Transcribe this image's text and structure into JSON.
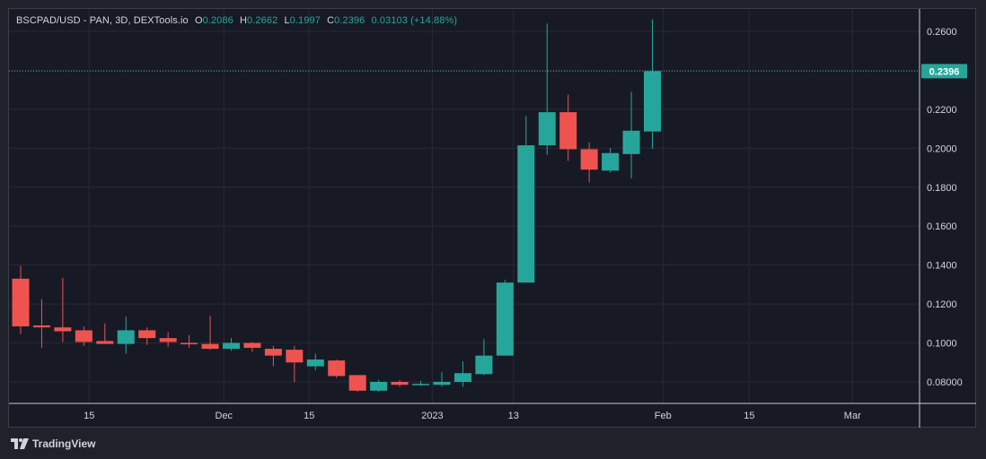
{
  "legend": {
    "symbol": "BSCPAD/USD - PAN, 3D, DEXTools.io",
    "open_label": "O",
    "open": "0.2086",
    "high_label": "H",
    "high": "0.2662",
    "low_label": "L",
    "low": "0.1997",
    "close_label": "C",
    "close": "0.2396",
    "change": "0.03103 (+14.88%)"
  },
  "branding": {
    "name": "TradingView"
  },
  "colors": {
    "up": "#26a69a",
    "down": "#ef5350",
    "background": "#171a25",
    "grid": "#262a36",
    "text": "#d1d4dc"
  },
  "chart_data": {
    "type": "candlestick",
    "interval": "3D",
    "ylim": [
      0.073,
      0.27
    ],
    "yticks": [
      "0.2600",
      "0.2400",
      "0.2200",
      "0.2000",
      "0.1800",
      "0.1600",
      "0.1400",
      "0.1200",
      "0.1000",
      "0.08000"
    ],
    "xticks": [
      "15",
      "Dec",
      "15",
      "2023",
      "13",
      "Feb",
      "15",
      "Mar"
    ],
    "last_price": "0.2396",
    "candles": [
      {
        "o": 0.133,
        "h": 0.1395,
        "l": 0.1045,
        "c": 0.1085
      },
      {
        "o": 0.109,
        "h": 0.1225,
        "l": 0.0975,
        "c": 0.108
      },
      {
        "o": 0.108,
        "h": 0.1335,
        "l": 0.1005,
        "c": 0.106
      },
      {
        "o": 0.1065,
        "h": 0.1085,
        "l": 0.0985,
        "c": 0.1005
      },
      {
        "o": 0.101,
        "h": 0.11,
        "l": 0.0995,
        "c": 0.0995
      },
      {
        "o": 0.0995,
        "h": 0.1135,
        "l": 0.0945,
        "c": 0.1065
      },
      {
        "o": 0.1065,
        "h": 0.108,
        "l": 0.099,
        "c": 0.1025
      },
      {
        "o": 0.1025,
        "h": 0.1055,
        "l": 0.098,
        "c": 0.1005
      },
      {
        "o": 0.1,
        "h": 0.104,
        "l": 0.0975,
        "c": 0.0995
      },
      {
        "o": 0.0995,
        "h": 0.114,
        "l": 0.0965,
        "c": 0.097
      },
      {
        "o": 0.097,
        "h": 0.1025,
        "l": 0.096,
        "c": 0.1
      },
      {
        "o": 0.1,
        "h": 0.1005,
        "l": 0.0955,
        "c": 0.0975
      },
      {
        "o": 0.097,
        "h": 0.0985,
        "l": 0.088,
        "c": 0.0935
      },
      {
        "o": 0.0965,
        "h": 0.0985,
        "l": 0.08,
        "c": 0.09
      },
      {
        "o": 0.088,
        "h": 0.0945,
        "l": 0.086,
        "c": 0.0915
      },
      {
        "o": 0.091,
        "h": 0.0915,
        "l": 0.082,
        "c": 0.083
      },
      {
        "o": 0.0835,
        "h": 0.0835,
        "l": 0.075,
        "c": 0.0755
      },
      {
        "o": 0.0755,
        "h": 0.081,
        "l": 0.075,
        "c": 0.08
      },
      {
        "o": 0.08,
        "h": 0.081,
        "l": 0.0775,
        "c": 0.0785
      },
      {
        "o": 0.0785,
        "h": 0.0805,
        "l": 0.078,
        "c": 0.079
      },
      {
        "o": 0.0785,
        "h": 0.085,
        "l": 0.0775,
        "c": 0.08
      },
      {
        "o": 0.08,
        "h": 0.0905,
        "l": 0.0775,
        "c": 0.0845
      },
      {
        "o": 0.084,
        "h": 0.102,
        "l": 0.0835,
        "c": 0.0935
      },
      {
        "o": 0.0935,
        "h": 0.1325,
        "l": 0.0935,
        "c": 0.131
      },
      {
        "o": 0.131,
        "h": 0.2165,
        "l": 0.131,
        "c": 0.2015
      },
      {
        "o": 0.2015,
        "h": 0.264,
        "l": 0.1965,
        "c": 0.2185
      },
      {
        "o": 0.2185,
        "h": 0.2275,
        "l": 0.1935,
        "c": 0.1995
      },
      {
        "o": 0.1995,
        "h": 0.203,
        "l": 0.1825,
        "c": 0.189
      },
      {
        "o": 0.1885,
        "h": 0.2,
        "l": 0.1875,
        "c": 0.1975
      },
      {
        "o": 0.197,
        "h": 0.229,
        "l": 0.1845,
        "c": 0.209
      },
      {
        "o": 0.2086,
        "h": 0.2662,
        "l": 0.1997,
        "c": 0.2396
      }
    ]
  }
}
